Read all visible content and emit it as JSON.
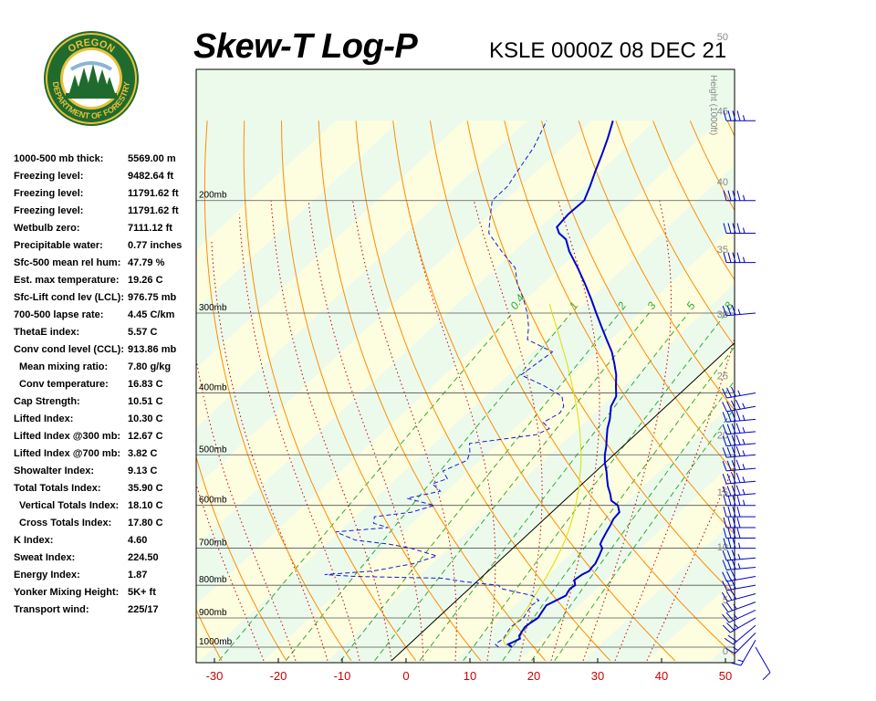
{
  "header": {
    "title": "Skew-T Log-P",
    "station_time": "KSLE 0000Z 08 DEC 21"
  },
  "logo": {
    "top_text": "OREGON",
    "bottom_text": "DEPARTMENT OF FORESTRY",
    "colors": {
      "ring": "#1f6b2e",
      "gold": "#e8c13a",
      "tree": "#1f6b2e"
    }
  },
  "indices": [
    {
      "label": "1000-500 mb thick:",
      "value": "5569.00 m"
    },
    {
      "label": "Freezing level:",
      "value": "9482.64 ft"
    },
    {
      "label": "Freezing level:",
      "value": "11791.62 ft"
    },
    {
      "label": "Freezing level:",
      "value": "11791.62 ft"
    },
    {
      "label": "Wetbulb zero:",
      "value": "7111.12 ft"
    },
    {
      "label": "Precipitable water:",
      "value": "0.77 inches"
    },
    {
      "label": "Sfc-500 mean rel hum:",
      "value": "47.79 %"
    },
    {
      "label": "Est. max temperature:",
      "value": "19.26 C"
    },
    {
      "label": "Sfc-Lift cond lev (LCL):",
      "value": "976.75 mb"
    },
    {
      "label": "700-500 lapse rate:",
      "value": "4.45 C/km"
    },
    {
      "label": "ThetaE index:",
      "value": "5.57 C"
    },
    {
      "label": "Conv cond level (CCL):",
      "value": "913.86 mb"
    },
    {
      "label": "Mean mixing ratio:",
      "value": "7.80 g/kg",
      "indent": true
    },
    {
      "label": "Conv temperature:",
      "value": "16.83 C",
      "indent": true
    },
    {
      "label": "Cap Strength:",
      "value": "10.51 C"
    },
    {
      "label": "Lifted Index:",
      "value": "10.30 C"
    },
    {
      "label": "Lifted Index @300 mb:",
      "value": "12.67 C"
    },
    {
      "label": "Lifted Index @700 mb:",
      "value": "3.82 C"
    },
    {
      "label": "Showalter Index:",
      "value": "9.13 C"
    },
    {
      "label": "Total Totals Index:",
      "value": "35.90 C"
    },
    {
      "label": "Vertical Totals Index:",
      "value": "18.10 C",
      "indent": true
    },
    {
      "label": "Cross Totals Index:",
      "value": "17.80 C",
      "indent": true
    },
    {
      "label": "K Index:",
      "value": "4.60"
    },
    {
      "label": "Sweat Index:",
      "value": "224.50"
    },
    {
      "label": "Energy Index:",
      "value": "1.87"
    },
    {
      "label": "Yonker Mixing Height:",
      "value": "5K+ ft"
    },
    {
      "label": "Transport wind:",
      "value": "225/17"
    }
  ],
  "chart_data": {
    "type": "line",
    "subtype": "skew-t log-p",
    "xlim": [
      -30,
      50
    ],
    "x_ticks": [
      "-30",
      "-20",
      "-10",
      "0",
      "10",
      "20",
      "30",
      "40",
      "50"
    ],
    "pressure_levels": [
      {
        "p": 1000,
        "label": "1000mb"
      },
      {
        "p": 900,
        "label": "900mb"
      },
      {
        "p": 800,
        "label": "800mb"
      },
      {
        "p": 700,
        "label": "700mb"
      },
      {
        "p": 600,
        "label": "600mb"
      },
      {
        "p": 500,
        "label": "500mb"
      },
      {
        "p": 400,
        "label": "400mb"
      },
      {
        "p": 300,
        "label": "300mb"
      },
      {
        "p": 200,
        "label": "200mb"
      }
    ],
    "height_axis_title": "Height (1000ft)",
    "height_ticks": [
      "0",
      "5",
      "10",
      "15",
      "20",
      "25",
      "30",
      "35",
      "40",
      "45",
      "50"
    ],
    "mixing_ratio_labels": [
      "0.4",
      "1",
      "2",
      "3",
      "5",
      "8"
    ],
    "colors": {
      "temperature": "#0000cc",
      "dewpoint": "#1a1acc",
      "parcel": "#dddd00",
      "isotherm": "#000000",
      "dry_adiabat": "#ff8c00",
      "moist_adiabat": "#cc0000",
      "mixing_ratio": "#33aa33",
      "isobar": "#555555",
      "band_light": "#ecfaec",
      "band_yellow": "#fdfde0",
      "x_tick": "#cc0000",
      "height_tick": "#888888"
    },
    "temperature": [
      [
        1000,
        16.6
      ],
      [
        990,
        15.5
      ],
      [
        980,
        16
      ],
      [
        970,
        16.4
      ],
      [
        960,
        15.8
      ],
      [
        950,
        15.6
      ],
      [
        930,
        15.2
      ],
      [
        915,
        15.4
      ],
      [
        900,
        15.7
      ],
      [
        880,
        15.3
      ],
      [
        860,
        14.9
      ],
      [
        845,
        15.6
      ],
      [
        830,
        16.3
      ],
      [
        820,
        16.0
      ],
      [
        810,
        15.8
      ],
      [
        800,
        16.0
      ],
      [
        785,
        15.0
      ],
      [
        770,
        15.3
      ],
      [
        760,
        15.8
      ],
      [
        750,
        15.6
      ],
      [
        740,
        15.5
      ],
      [
        720,
        14.8
      ],
      [
        700,
        14.0
      ],
      [
        690,
        13.0
      ],
      [
        680,
        12.6
      ],
      [
        660,
        11.9
      ],
      [
        645,
        11.4
      ],
      [
        630,
        10.8
      ],
      [
        615,
        10.6
      ],
      [
        600,
        9.2
      ],
      [
        590,
        7.4
      ],
      [
        575,
        6.0
      ],
      [
        560,
        4.4
      ],
      [
        545,
        3.0
      ],
      [
        530,
        1.6
      ],
      [
        515,
        0.0
      ],
      [
        500,
        -1.4
      ],
      [
        485,
        -2.6
      ],
      [
        470,
        -4.0
      ],
      [
        455,
        -5.4
      ],
      [
        440,
        -6.6
      ],
      [
        420,
        -8.6
      ],
      [
        405,
        -9.5
      ],
      [
        390,
        -11.3
      ],
      [
        375,
        -13.1
      ],
      [
        360,
        -15.3
      ],
      [
        345,
        -17.7
      ],
      [
        330,
        -20.6
      ],
      [
        315,
        -23.6
      ],
      [
        300,
        -26.7
      ],
      [
        285,
        -29.9
      ],
      [
        270,
        -33.4
      ],
      [
        255,
        -37.2
      ],
      [
        240,
        -41.4
      ],
      [
        230,
        -43.9
      ],
      [
        225,
        -46.0
      ],
      [
        220,
        -47.4
      ],
      [
        210,
        -47.8
      ],
      [
        200,
        -47.6
      ],
      [
        190,
        -49.1
      ],
      [
        180,
        -50.8
      ],
      [
        170,
        -52.5
      ],
      [
        160,
        -54.4
      ],
      [
        150,
        -56.6
      ]
    ],
    "dewpoint": [
      [
        1000,
        14.5
      ],
      [
        990,
        13.5
      ],
      [
        970,
        13.8
      ],
      [
        950,
        13.4
      ],
      [
        930,
        13.0
      ],
      [
        915,
        13.2
      ],
      [
        900,
        13.4
      ],
      [
        880,
        13.0
      ],
      [
        860,
        12.6
      ],
      [
        845,
        12.9
      ],
      [
        830,
        11.0
      ],
      [
        820,
        8.0
      ],
      [
        810,
        5.0
      ],
      [
        800,
        4.0
      ],
      [
        790,
        -2.0
      ],
      [
        780,
        -6.0
      ],
      [
        775,
        -20.0
      ],
      [
        770,
        -25.0
      ],
      [
        760,
        -18.0
      ],
      [
        740,
        -13.0
      ],
      [
        720,
        -10.6
      ],
      [
        700,
        -16.0
      ],
      [
        690,
        -20.0
      ],
      [
        680,
        -26.0
      ],
      [
        660,
        -30.5
      ],
      [
        650,
        -23.0
      ],
      [
        640,
        -26.0
      ],
      [
        625,
        -27.0
      ],
      [
        615,
        -22.0
      ],
      [
        600,
        -19.5
      ],
      [
        585,
        -25.0
      ],
      [
        570,
        -21.0
      ],
      [
        555,
        -23.5
      ],
      [
        545,
        -22.0
      ],
      [
        530,
        -24.0
      ],
      [
        510,
        -22.0
      ],
      [
        495,
        -23.0
      ],
      [
        480,
        -24.5
      ],
      [
        465,
        -15.5
      ],
      [
        455,
        -14.5
      ],
      [
        445,
        -16.5
      ],
      [
        430,
        -15.5
      ],
      [
        420,
        -16.0
      ],
      [
        405,
        -18.0
      ],
      [
        390,
        -22.5
      ],
      [
        375,
        -28.0
      ],
      [
        360,
        -27.5
      ],
      [
        345,
        -27.0
      ],
      [
        330,
        -33.0
      ],
      [
        315,
        -35.0
      ],
      [
        300,
        -37.5
      ],
      [
        285,
        -40.5
      ],
      [
        270,
        -44.0
      ],
      [
        255,
        -47.0
      ],
      [
        240,
        -52.0
      ],
      [
        225,
        -57.0
      ],
      [
        215,
        -59.0
      ],
      [
        200,
        -62.0
      ],
      [
        190,
        -62.0
      ],
      [
        180,
        -63.0
      ],
      [
        165,
        -64.5
      ],
      [
        150,
        -67.0
      ]
    ],
    "parcel": [
      [
        1000,
        15.8
      ],
      [
        975,
        14.0
      ],
      [
        960,
        13.9
      ],
      [
        940,
        13.5
      ],
      [
        920,
        13.2
      ],
      [
        900,
        12.9
      ],
      [
        880,
        12.6
      ],
      [
        860,
        12.2
      ],
      [
        840,
        11.6
      ],
      [
        820,
        11.2
      ],
      [
        800,
        10.7
      ],
      [
        780,
        10.2
      ],
      [
        760,
        9.6
      ],
      [
        740,
        9.0
      ],
      [
        720,
        8.3
      ],
      [
        700,
        7.6
      ],
      [
        680,
        6.8
      ],
      [
        660,
        5.9
      ],
      [
        640,
        4.9
      ],
      [
        620,
        3.8
      ],
      [
        600,
        2.6
      ],
      [
        580,
        1.3
      ],
      [
        560,
        -0.1
      ],
      [
        540,
        -1.7
      ],
      [
        520,
        -3.3
      ],
      [
        500,
        -5.1
      ],
      [
        480,
        -7.1
      ],
      [
        460,
        -9.2
      ],
      [
        440,
        -11.5
      ],
      [
        420,
        -14.0
      ],
      [
        400,
        -16.7
      ],
      [
        380,
        -19.6
      ],
      [
        360,
        -22.7
      ],
      [
        340,
        -26.1
      ],
      [
        320,
        -29.7
      ],
      [
        300,
        -33.6
      ],
      [
        290,
        -35.6
      ]
    ],
    "wind_barbs": [
      {
        "p": 1000,
        "dir": 150,
        "speed": 10
      },
      {
        "p": 975,
        "dir": 210,
        "speed": 15
      },
      {
        "p": 950,
        "dir": 225,
        "speed": 15
      },
      {
        "p": 925,
        "dir": 230,
        "speed": 20
      },
      {
        "p": 900,
        "dir": 240,
        "speed": 25
      },
      {
        "p": 875,
        "dir": 245,
        "speed": 25
      },
      {
        "p": 850,
        "dir": 250,
        "speed": 25
      },
      {
        "p": 825,
        "dir": 255,
        "speed": 30
      },
      {
        "p": 800,
        "dir": 260,
        "speed": 30
      },
      {
        "p": 775,
        "dir": 260,
        "speed": 30
      },
      {
        "p": 750,
        "dir": 265,
        "speed": 35
      },
      {
        "p": 725,
        "dir": 265,
        "speed": 35
      },
      {
        "p": 700,
        "dir": 270,
        "speed": 35
      },
      {
        "p": 675,
        "dir": 270,
        "speed": 40
      },
      {
        "p": 650,
        "dir": 270,
        "speed": 40
      },
      {
        "p": 625,
        "dir": 270,
        "speed": 40
      },
      {
        "p": 600,
        "dir": 270,
        "speed": 45
      },
      {
        "p": 575,
        "dir": 265,
        "speed": 45
      },
      {
        "p": 550,
        "dir": 265,
        "speed": 45
      },
      {
        "p": 525,
        "dir": 265,
        "speed": 45
      },
      {
        "p": 500,
        "dir": 265,
        "speed": 45
      },
      {
        "p": 480,
        "dir": 265,
        "speed": 45
      },
      {
        "p": 460,
        "dir": 265,
        "speed": 45
      },
      {
        "p": 440,
        "dir": 265,
        "speed": 45
      },
      {
        "p": 420,
        "dir": 260,
        "speed": 45
      },
      {
        "p": 400,
        "dir": 260,
        "speed": 35
      },
      {
        "p": 300,
        "dir": 265,
        "speed": 35
      },
      {
        "p": 250,
        "dir": 270,
        "speed": 45
      },
      {
        "p": 225,
        "dir": 270,
        "speed": 45
      },
      {
        "p": 200,
        "dir": 270,
        "speed": 45
      },
      {
        "p": 150,
        "dir": 270,
        "speed": 45
      }
    ]
  }
}
